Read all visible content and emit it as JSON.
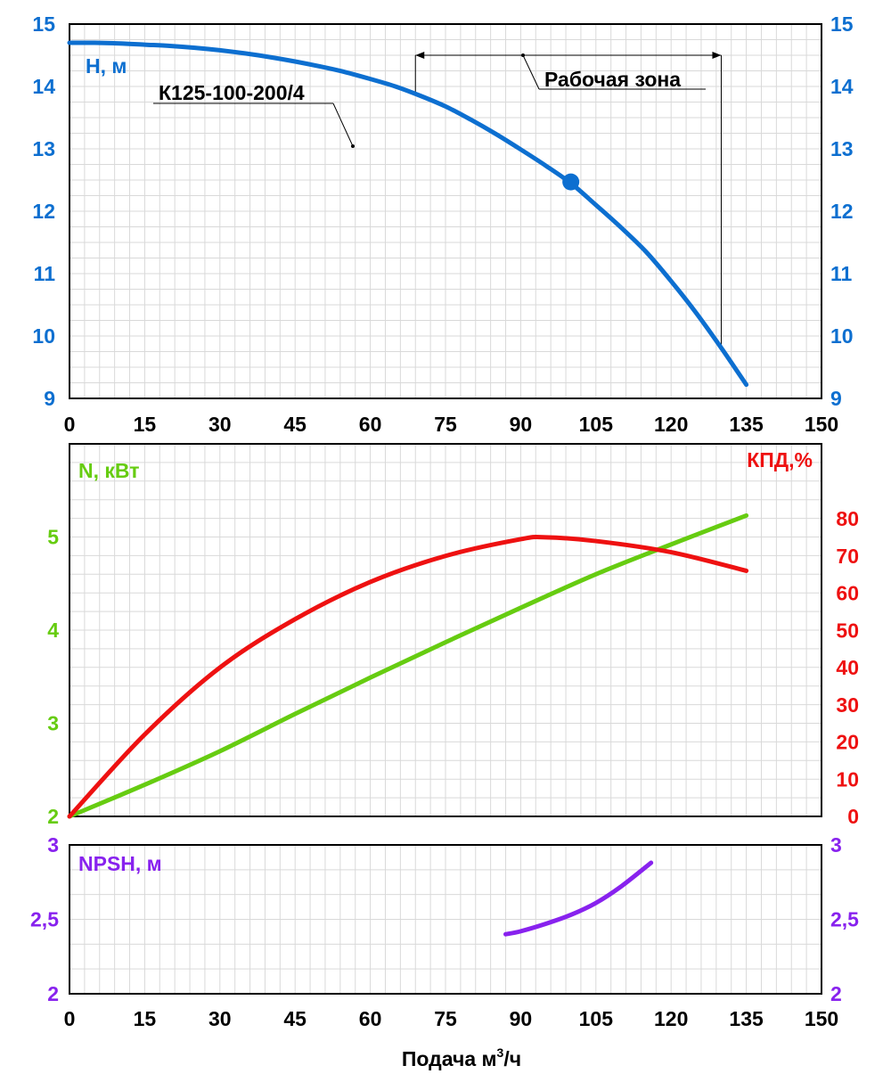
{
  "colors": {
    "head": "#0d6fd0",
    "power": "#66cc11",
    "efficiency": "#ee1111",
    "npsh": "#8822ee",
    "axis": "#000000",
    "grid": "#d9d9d9",
    "annotation": "#000000"
  },
  "x_axis": {
    "label_text": "Подача м",
    "label_superscript": "3",
    "label_suffix": "/ч",
    "ticks": [
      "0",
      "15",
      "30",
      "45",
      "60",
      "75",
      "90",
      "105",
      "120",
      "135",
      "150"
    ]
  },
  "chart_data": [
    {
      "type": "line",
      "panel": "head",
      "ylabel": "Н, м",
      "xlim": [
        0,
        150
      ],
      "ylim": [
        9,
        15
      ],
      "grid": true,
      "y_ticks_left": [
        "9",
        "10",
        "11",
        "12",
        "13",
        "14",
        "15"
      ],
      "y_ticks_right": [
        "9",
        "10",
        "11",
        "12",
        "13",
        "14",
        "15"
      ],
      "series": [
        {
          "name": "К125-100-200/4",
          "x": [
            0,
            5,
            10,
            15,
            20,
            25,
            30,
            35,
            40,
            45,
            50,
            55,
            60,
            65,
            70,
            75,
            80,
            85,
            90,
            95,
            100,
            105,
            110,
            115,
            120,
            125,
            130,
            135
          ],
          "values": [
            14.7,
            14.7,
            14.69,
            14.67,
            14.65,
            14.62,
            14.58,
            14.53,
            14.47,
            14.4,
            14.32,
            14.23,
            14.12,
            14.0,
            13.85,
            13.68,
            13.47,
            13.24,
            12.99,
            12.73,
            12.45,
            12.1,
            11.74,
            11.35,
            10.88,
            10.37,
            9.81,
            9.22
          ]
        }
      ],
      "operating_point": {
        "x": 100,
        "y": 12.47
      },
      "working_zone": {
        "label": "Рабочая зона",
        "x_start": 69,
        "x_end": 130,
        "y_level": 14.5
      }
    },
    {
      "type": "line",
      "panel": "power-efficiency",
      "ylabel": "N, кВт",
      "ylabel_right": "КПД,%",
      "xlim": [
        0,
        150
      ],
      "ylim": [
        2,
        6
      ],
      "ylim_right": [
        0,
        80
      ],
      "grid": true,
      "y_ticks_left": [
        "2",
        "3",
        "4",
        "5"
      ],
      "y_ticks_right": [
        "0",
        "10",
        "20",
        "30",
        "40",
        "50",
        "60",
        "70",
        "80"
      ],
      "series": [
        {
          "name": "N, кВт",
          "axis": "left",
          "x": [
            0,
            15,
            30,
            45,
            60,
            75,
            90,
            105,
            120,
            135
          ],
          "values": [
            2.0,
            2.34,
            2.7,
            3.1,
            3.49,
            3.87,
            4.24,
            4.6,
            4.92,
            5.23
          ]
        },
        {
          "name": "КПД,%",
          "axis": "right",
          "x": [
            0,
            15,
            30,
            45,
            60,
            75,
            90,
            95,
            105,
            120,
            135
          ],
          "values": [
            0,
            22,
            40,
            53,
            63,
            70,
            74.5,
            75,
            74,
            71,
            66
          ]
        }
      ]
    },
    {
      "type": "line",
      "panel": "npsh",
      "ylabel": "NPSH, м",
      "xlim": [
        0,
        150
      ],
      "ylim": [
        2,
        3
      ],
      "grid": true,
      "y_ticks_left": [
        "2",
        "2,5",
        "3"
      ],
      "y_ticks_right": [
        "2",
        "2,5",
        "3"
      ],
      "series": [
        {
          "name": "NPSH, м",
          "x": [
            87,
            90,
            95,
            100,
            105,
            110,
            116
          ],
          "values": [
            2.4,
            2.42,
            2.47,
            2.53,
            2.61,
            2.72,
            2.88
          ]
        }
      ]
    }
  ]
}
